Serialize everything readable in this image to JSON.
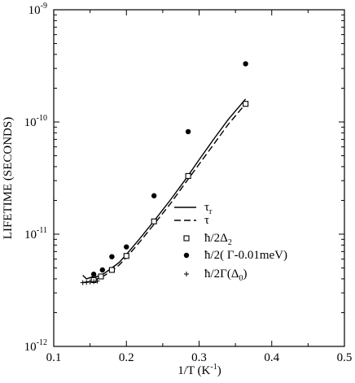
{
  "chart_data": {
    "type": "line",
    "xlabel": "1/T (K",
    "xlabel_sup": "-1",
    "xlabel_suffix": ")",
    "ylabel": "LIFETIME (SECONDS)",
    "xlim": [
      0.1,
      0.5
    ],
    "ylim": [
      1e-12,
      1e-09
    ],
    "y_scale": "log",
    "x_ticks": [
      "0.1",
      "0.2",
      "0.3",
      "0.4",
      "0.5"
    ],
    "y_ticks": [
      {
        "base": "10",
        "exp": "-12"
      },
      {
        "base": "10",
        "exp": "-11"
      },
      {
        "base": "10",
        "exp": "-10"
      },
      {
        "base": "10",
        "exp": "-9"
      }
    ],
    "legend_position": "lower-right",
    "series": [
      {
        "name": "τr",
        "style": "solid",
        "x": [
          0.14,
          0.145,
          0.15,
          0.155,
          0.16,
          0.17,
          0.18,
          0.19,
          0.2,
          0.22,
          0.24,
          0.26,
          0.28,
          0.3,
          0.32,
          0.34,
          0.364
        ],
        "y": [
          4.3e-12,
          4e-12,
          4.1e-12,
          4.2e-12,
          4.2e-12,
          4.5e-12,
          5e-12,
          5.6e-12,
          6.6e-12,
          9.4e-12,
          1.36e-11,
          2e-11,
          3e-11,
          4.6e-11,
          7e-11,
          1.05e-10,
          1.6e-10
        ]
      },
      {
        "name": "τ",
        "style": "dashed",
        "x": [
          0.14,
          0.15,
          0.16,
          0.17,
          0.18,
          0.19,
          0.2,
          0.22,
          0.24,
          0.26,
          0.28,
          0.3,
          0.32,
          0.34,
          0.364
        ],
        "y": [
          3.7e-12,
          3.8e-12,
          4e-12,
          4.3e-12,
          4.7e-12,
          5.3e-12,
          6.2e-12,
          8.8e-12,
          1.27e-11,
          1.85e-11,
          2.8e-11,
          4.2e-11,
          6.3e-11,
          9.5e-11,
          1.45e-10
        ]
      },
      {
        "name": "ħ/2Δ2",
        "style": "open-square",
        "x": [
          0.155,
          0.165,
          0.18,
          0.2,
          0.238,
          0.285,
          0.364
        ],
        "y": [
          3.9e-12,
          4.2e-12,
          4.8e-12,
          6.4e-12,
          1.3e-11,
          3.3e-11,
          1.45e-10
        ]
      },
      {
        "name": "ħ/2( Γ-0.01meV)",
        "style": "filled-circle",
        "x": [
          0.155,
          0.167,
          0.18,
          0.2,
          0.238,
          0.285,
          0.364
        ],
        "y": [
          4.4e-12,
          4.8e-12,
          6.3e-12,
          7.7e-12,
          2.2e-11,
          8.2e-11,
          3.3e-10
        ]
      },
      {
        "name": "ħ/2Γ(Δ0)",
        "style": "plus",
        "x": [
          0.14,
          0.145,
          0.15,
          0.155,
          0.16
        ],
        "y": [
          3.7e-12,
          3.72e-12,
          3.75e-12,
          3.78e-12,
          3.82e-12
        ]
      }
    ],
    "legend": [
      {
        "base": "τ",
        "sub": "r",
        "tail": ""
      },
      {
        "base": "τ",
        "sub": "",
        "tail": ""
      },
      {
        "base": "ħ/2Δ",
        "sub": "2",
        "tail": ""
      },
      {
        "base": "ħ/2( Γ-0.01meV)",
        "sub": "",
        "tail": ""
      },
      {
        "base": "ħ/2Γ(Δ",
        "sub": "0",
        "tail": ")"
      }
    ]
  }
}
